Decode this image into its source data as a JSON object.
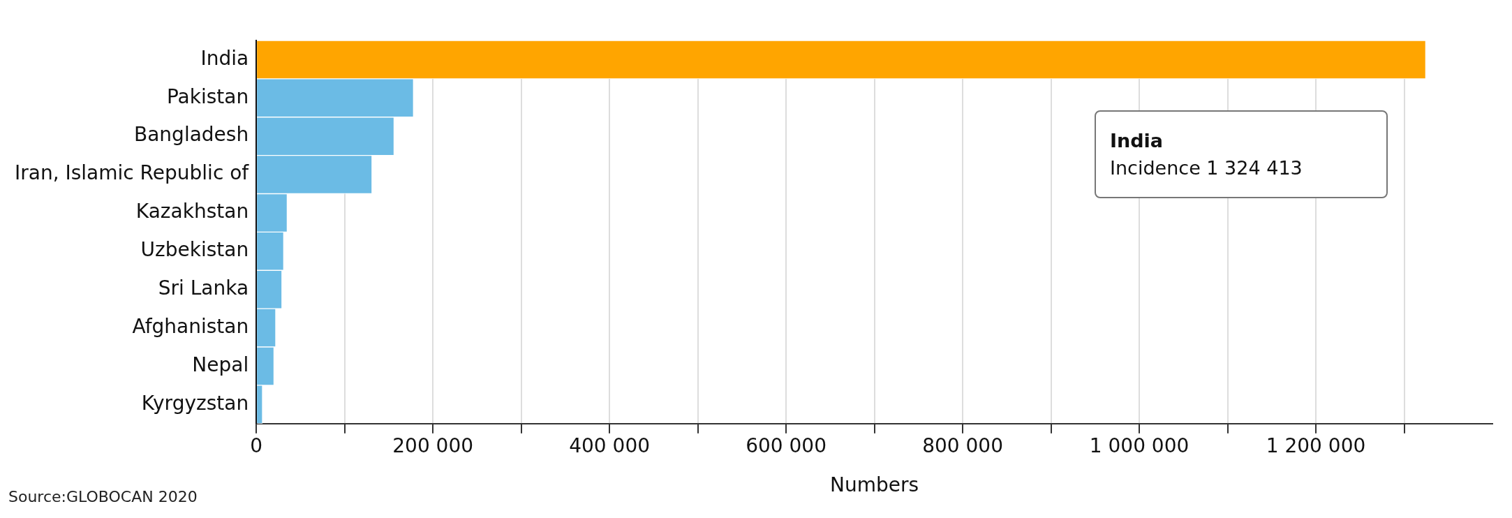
{
  "chart_data": {
    "type": "bar",
    "orientation": "horizontal",
    "xlabel": "Numbers",
    "categories": [
      "India",
      "Pakistan",
      "Bangladesh",
      "Iran, Islamic Republic of",
      "Kazakhstan",
      "Uzbekistan",
      "Sri Lanka",
      "Afghanistan",
      "Nepal",
      "Kyrgyzstan"
    ],
    "values": [
      1324413,
      178000,
      156000,
      131000,
      35000,
      31000,
      29000,
      22000,
      20000,
      7000
    ],
    "colors": [
      "#ffa500",
      "#6bbbe5",
      "#6bbbe5",
      "#6bbbe5",
      "#6bbbe5",
      "#6bbbe5",
      "#6bbbe5",
      "#6bbbe5",
      "#6bbbe5",
      "#6bbbe5"
    ],
    "xlim": [
      0,
      1400000
    ],
    "xticks": [
      0,
      {
        "value": 100000,
        "label": null
      },
      {
        "value": 200000,
        "label": "200 000"
      },
      {
        "value": 300000,
        "label": null
      },
      {
        "value": 400000,
        "label": "400 000"
      },
      {
        "value": 500000,
        "label": null
      },
      {
        "value": 600000,
        "label": "600 000"
      },
      {
        "value": 700000,
        "label": null
      },
      {
        "value": 800000,
        "label": "800 000"
      },
      {
        "value": 900000,
        "label": null
      },
      {
        "value": 1000000,
        "label": "1 000 000"
      },
      {
        "value": 1100000,
        "label": null
      },
      {
        "value": 1200000,
        "label": "1 200 000"
      },
      {
        "value": 1300000,
        "label": null
      }
    ],
    "grid": "x",
    "annotations": [
      "India",
      "Incidence 1 324 413",
      "Source:GLOBOCAN 2020"
    ]
  }
}
